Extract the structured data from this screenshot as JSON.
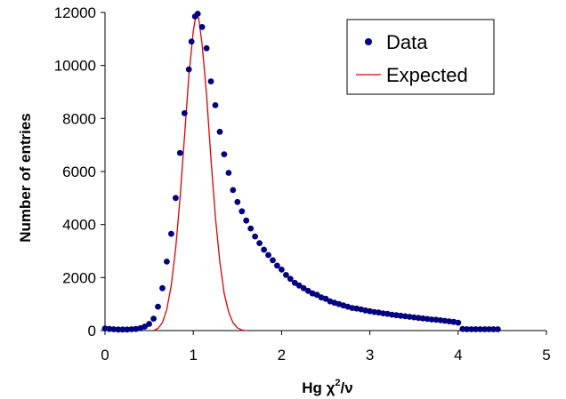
{
  "chart_data": {
    "type": "scatter",
    "xlabel_main": "Hg χ",
    "xlabel_sup": "2",
    "xlabel_tail": "/ν",
    "ylabel": "Number of entries",
    "xlim": [
      0,
      5
    ],
    "ylim": [
      0,
      12000
    ],
    "x_ticks": [
      0,
      1,
      2,
      3,
      4,
      5
    ],
    "y_ticks": [
      0,
      2000,
      4000,
      6000,
      8000,
      10000,
      12000
    ],
    "grid": false,
    "legend_position": "top-right",
    "series": [
      {
        "name": "Data",
        "kind": "markers",
        "color": "#000080",
        "points": [
          [
            0.0,
            80
          ],
          [
            0.05,
            60
          ],
          [
            0.1,
            50
          ],
          [
            0.15,
            40
          ],
          [
            0.2,
            40
          ],
          [
            0.25,
            40
          ],
          [
            0.3,
            50
          ],
          [
            0.35,
            60
          ],
          [
            0.4,
            90
          ],
          [
            0.45,
            150
          ],
          [
            0.5,
            250
          ],
          [
            0.55,
            450
          ],
          [
            0.6,
            900
          ],
          [
            0.65,
            1600
          ],
          [
            0.7,
            2600
          ],
          [
            0.75,
            3650
          ],
          [
            0.8,
            5000
          ],
          [
            0.85,
            6700
          ],
          [
            0.9,
            8200
          ],
          [
            0.95,
            9850
          ],
          [
            0.98,
            10900
          ],
          [
            1.02,
            11850
          ],
          [
            1.05,
            11950
          ],
          [
            1.1,
            11450
          ],
          [
            1.15,
            10650
          ],
          [
            1.2,
            9400
          ],
          [
            1.25,
            8500
          ],
          [
            1.3,
            7500
          ],
          [
            1.35,
            6650
          ],
          [
            1.4,
            5950
          ],
          [
            1.45,
            5300
          ],
          [
            1.5,
            4850
          ],
          [
            1.55,
            4500
          ],
          [
            1.6,
            4150
          ],
          [
            1.65,
            3850
          ],
          [
            1.7,
            3550
          ],
          [
            1.75,
            3300
          ],
          [
            1.8,
            3050
          ],
          [
            1.85,
            2850
          ],
          [
            1.9,
            2650
          ],
          [
            1.95,
            2450
          ],
          [
            2.0,
            2300
          ],
          [
            2.05,
            2100
          ],
          [
            2.1,
            1950
          ],
          [
            2.15,
            1800
          ],
          [
            2.2,
            1700
          ],
          [
            2.25,
            1600
          ],
          [
            2.3,
            1500
          ],
          [
            2.35,
            1400
          ],
          [
            2.4,
            1350
          ],
          [
            2.45,
            1250
          ],
          [
            2.5,
            1200
          ],
          [
            2.55,
            1100
          ],
          [
            2.6,
            1050
          ],
          [
            2.65,
            1000
          ],
          [
            2.7,
            950
          ],
          [
            2.75,
            900
          ],
          [
            2.8,
            850
          ],
          [
            2.85,
            830
          ],
          [
            2.9,
            800
          ],
          [
            2.95,
            760
          ],
          [
            3.0,
            730
          ],
          [
            3.05,
            700
          ],
          [
            3.1,
            680
          ],
          [
            3.15,
            650
          ],
          [
            3.2,
            630
          ],
          [
            3.25,
            600
          ],
          [
            3.3,
            580
          ],
          [
            3.35,
            560
          ],
          [
            3.4,
            540
          ],
          [
            3.45,
            520
          ],
          [
            3.5,
            500
          ],
          [
            3.55,
            480
          ],
          [
            3.6,
            460
          ],
          [
            3.65,
            440
          ],
          [
            3.7,
            420
          ],
          [
            3.75,
            410
          ],
          [
            3.8,
            390
          ],
          [
            3.85,
            370
          ],
          [
            3.9,
            350
          ],
          [
            3.95,
            330
          ],
          [
            4.0,
            300
          ],
          [
            4.05,
            60
          ],
          [
            4.1,
            50
          ],
          [
            4.15,
            50
          ],
          [
            4.2,
            50
          ],
          [
            4.25,
            50
          ],
          [
            4.3,
            50
          ],
          [
            4.35,
            50
          ],
          [
            4.4,
            50
          ],
          [
            4.45,
            50
          ]
        ]
      },
      {
        "name": "Expected",
        "kind": "line",
        "color": "#dd0000",
        "points": [
          [
            0.55,
            0
          ],
          [
            0.6,
            80
          ],
          [
            0.65,
            300
          ],
          [
            0.7,
            800
          ],
          [
            0.75,
            1700
          ],
          [
            0.8,
            3100
          ],
          [
            0.85,
            5000
          ],
          [
            0.9,
            7300
          ],
          [
            0.95,
            9600
          ],
          [
            1.0,
            11300
          ],
          [
            1.03,
            11900
          ],
          [
            1.06,
            11800
          ],
          [
            1.1,
            10800
          ],
          [
            1.15,
            8900
          ],
          [
            1.2,
            6500
          ],
          [
            1.25,
            4300
          ],
          [
            1.3,
            2600
          ],
          [
            1.35,
            1400
          ],
          [
            1.4,
            700
          ],
          [
            1.45,
            300
          ],
          [
            1.5,
            100
          ],
          [
            1.55,
            20
          ],
          [
            1.6,
            0
          ]
        ]
      }
    ]
  }
}
